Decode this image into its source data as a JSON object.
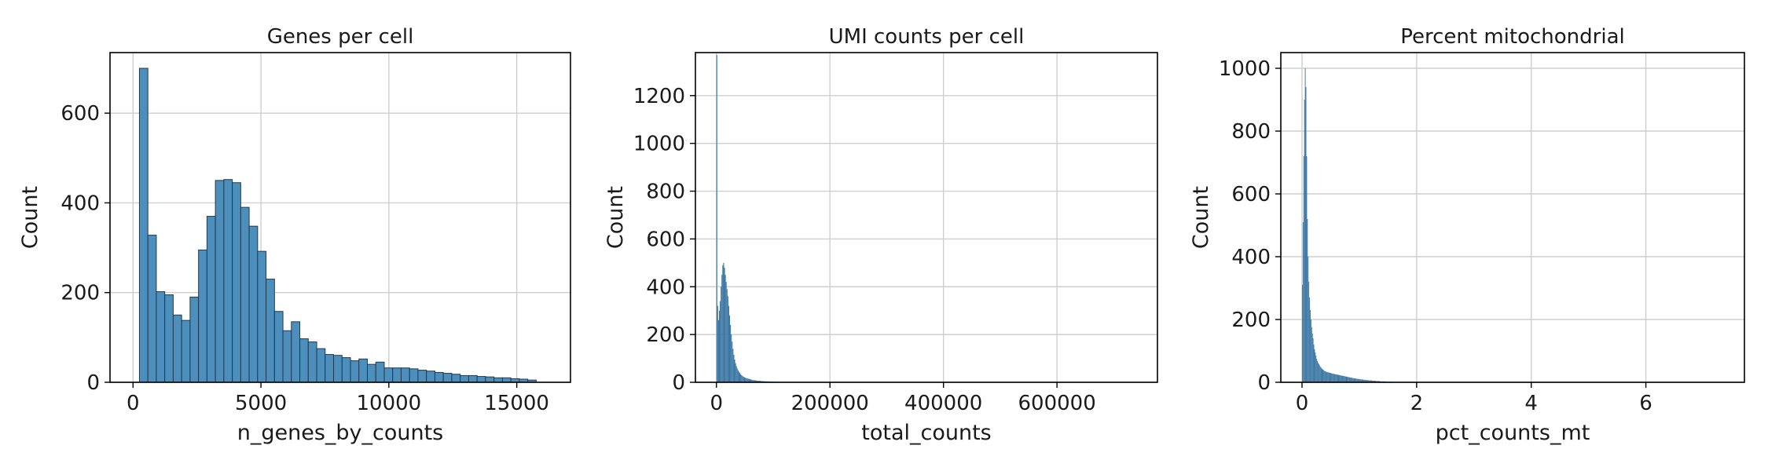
{
  "figure": {
    "background": "#ffffff"
  },
  "style": {
    "bar_fill": "#4c8fbc",
    "bar_edge": "#223a4d",
    "fine_fill": "#3a76a3",
    "grid_color": "#cfcfcf",
    "spine_color": "#000000"
  },
  "chart_data": [
    {
      "type": "bar",
      "title": "Genes per cell",
      "xlabel": "n_genes_by_counts",
      "ylabel": "Count",
      "xlim": [
        -900,
        17100
      ],
      "ylim": [
        0,
        735
      ],
      "xticks": [
        0,
        5000,
        10000,
        15000
      ],
      "xtick_labels": [
        "0",
        "5000",
        "10000",
        "15000"
      ],
      "yticks": [
        0,
        200,
        400,
        600
      ],
      "ytick_labels": [
        "0",
        "200",
        "400",
        "600"
      ],
      "grid": true,
      "bin_start": 250,
      "bin_width": 330,
      "values": [
        700,
        328,
        202,
        195,
        150,
        138,
        190,
        295,
        370,
        450,
        452,
        445,
        390,
        348,
        292,
        230,
        158,
        115,
        135,
        97,
        90,
        75,
        62,
        60,
        55,
        48,
        52,
        40,
        45,
        32,
        32,
        32,
        30,
        27,
        25,
        22,
        20,
        18,
        15,
        15,
        13,
        12,
        10,
        10,
        8,
        7,
        5
      ]
    },
    {
      "type": "bar",
      "title": "UMI counts per cell",
      "xlabel": "total_counts",
      "ylabel": "Count",
      "xlim": [
        -37000,
        777000
      ],
      "ylim": [
        0,
        1380
      ],
      "xticks": [
        0,
        200000,
        400000,
        600000
      ],
      "xtick_labels": [
        "0",
        "200000",
        "400000",
        "600000"
      ],
      "yticks": [
        0,
        200,
        400,
        600,
        800,
        1000,
        1200
      ],
      "ytick_labels": [
        "0",
        "200",
        "400",
        "600",
        "800",
        "1000",
        "1200"
      ],
      "grid": true,
      "bin_start": 0,
      "bin_width": 1500,
      "values": [
        1370,
        320,
        260,
        300,
        340,
        400,
        450,
        490,
        500,
        480,
        450,
        420,
        390,
        360,
        320,
        280,
        240,
        200,
        170,
        140,
        115,
        95,
        80,
        68,
        58,
        50,
        44,
        39,
        34,
        30,
        27,
        24,
        22,
        20,
        18,
        17,
        16,
        15,
        14,
        13,
        12,
        11,
        10,
        9,
        9,
        8,
        8,
        7,
        7,
        6,
        6,
        6,
        5,
        5,
        5,
        5,
        4,
        4,
        4,
        4,
        4,
        3,
        3,
        3,
        3,
        3,
        3,
        3,
        2,
        2,
        2,
        2,
        2,
        2,
        2,
        2,
        2,
        2,
        1,
        1,
        1,
        1,
        1,
        1,
        1,
        1,
        1,
        1,
        1,
        1
      ]
    },
    {
      "type": "bar",
      "title": "Percent mitochondrial",
      "xlabel": "pct_counts_mt",
      "ylabel": "Count",
      "xlim": [
        -0.37,
        7.72
      ],
      "ylim": [
        0,
        1050
      ],
      "xticks": [
        0,
        2,
        4,
        6
      ],
      "xtick_labels": [
        "0",
        "2",
        "4",
        "6"
      ],
      "yticks": [
        0,
        200,
        400,
        600,
        800,
        1000
      ],
      "ytick_labels": [
        "0",
        "200",
        "400",
        "600",
        "800",
        "1000"
      ],
      "grid": true,
      "bin_start": 0,
      "bin_width": 0.0125,
      "values": [
        310,
        510,
        720,
        900,
        1000,
        940,
        720,
        520,
        400,
        320,
        270,
        230,
        200,
        175,
        155,
        140,
        120,
        105,
        95,
        85,
        75,
        68,
        62,
        58,
        54,
        50,
        47,
        44,
        42,
        40,
        38,
        36,
        35,
        34,
        33,
        32,
        32,
        31,
        30,
        30,
        29,
        28,
        28,
        27,
        27,
        26,
        26,
        25,
        25,
        24,
        24,
        23,
        23,
        22,
        22,
        21,
        21,
        20,
        20,
        19,
        19,
        18,
        18,
        17,
        17,
        16,
        16,
        15,
        15,
        14,
        14,
        13,
        13,
        12,
        12,
        12,
        11,
        11,
        11,
        10,
        10,
        10,
        9,
        9,
        9,
        8,
        8,
        8,
        8,
        7,
        7,
        7,
        7,
        6,
        6,
        6,
        6,
        6,
        5,
        5,
        5,
        5,
        5,
        4,
        4,
        4,
        4,
        4,
        4,
        3,
        3,
        3,
        3,
        3,
        3,
        3,
        2,
        2,
        2,
        2,
        2,
        2,
        2,
        2,
        2,
        2,
        1,
        1,
        1,
        1,
        1,
        1,
        1,
        1,
        1,
        1,
        1,
        1,
        1,
        1,
        1,
        1,
        1,
        1,
        1,
        1,
        1,
        1,
        1,
        1
      ]
    }
  ]
}
